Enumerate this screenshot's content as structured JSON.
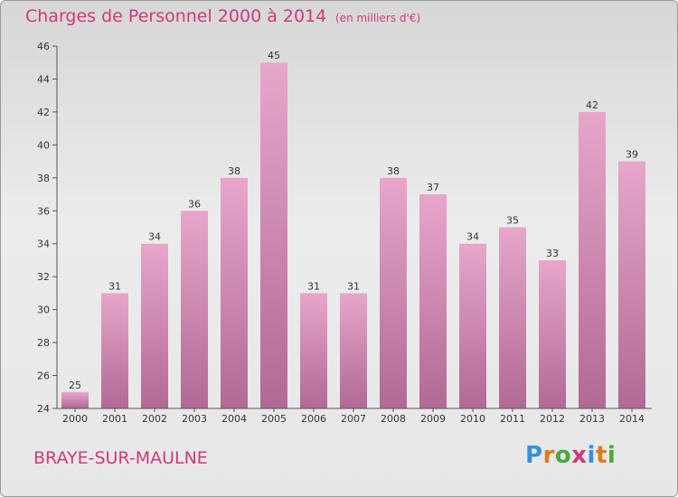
{
  "header": {
    "title": "Charges de Personnel 2000 à 2014",
    "subtitle": "(en milliers d'€)"
  },
  "footer": {
    "city": "BRAYE-SUR-MAULNE",
    "logo": "Proxiti"
  },
  "colors": {
    "accent": "#d0397a",
    "bar_top": "#e8a6cb",
    "bar_bottom": "#b06a94"
  },
  "chart_data": {
    "type": "bar",
    "title": "Charges de Personnel 2000 à 2014",
    "subtitle": "(en milliers d'€)",
    "xlabel": "",
    "ylabel": "",
    "categories": [
      "2000",
      "2001",
      "2002",
      "2003",
      "2004",
      "2005",
      "2006",
      "2007",
      "2008",
      "2009",
      "2010",
      "2011",
      "2012",
      "2013",
      "2014"
    ],
    "values": [
      25,
      31,
      34,
      36,
      38,
      45,
      31,
      31,
      38,
      37,
      34,
      35,
      33,
      42,
      39
    ],
    "ylim": [
      24,
      46
    ],
    "yticks": [
      24,
      26,
      28,
      30,
      32,
      34,
      36,
      38,
      40,
      42,
      44,
      46
    ],
    "grid": false,
    "legend": "none"
  }
}
